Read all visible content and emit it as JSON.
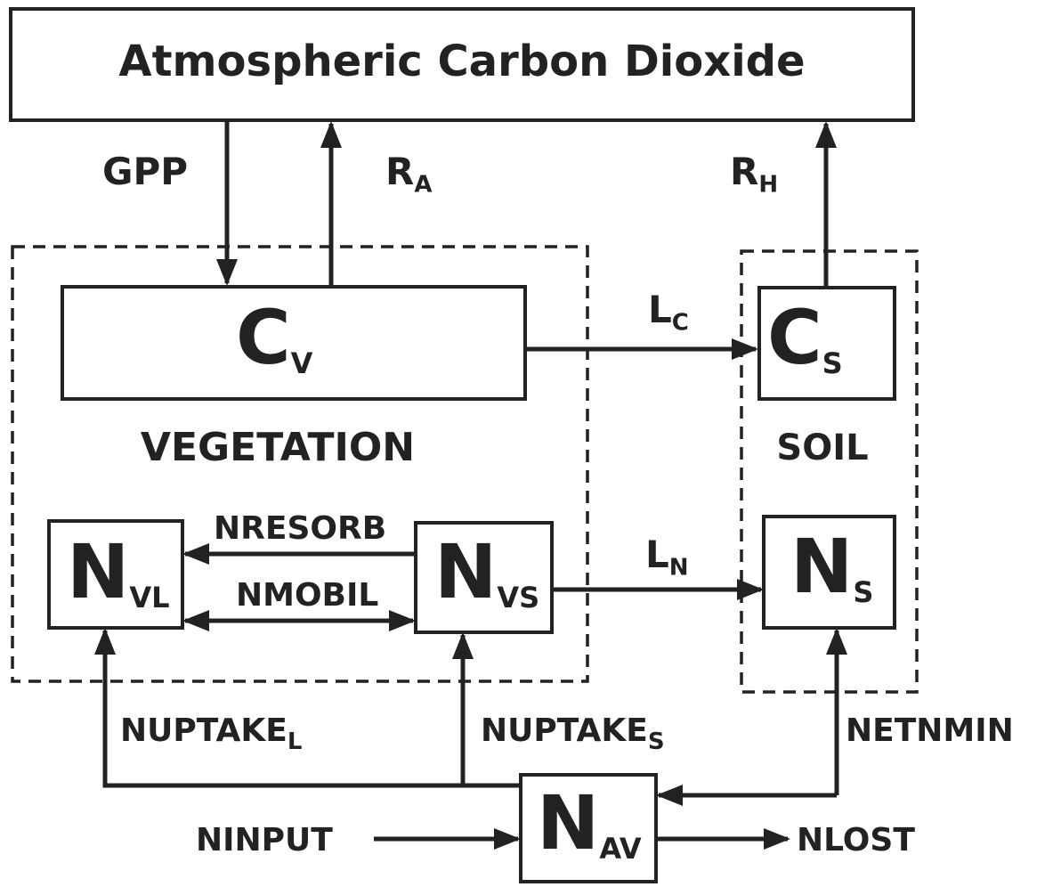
{
  "header": {
    "title": "Atmospheric Carbon Dioxide"
  },
  "groups": [
    {
      "label": "VEGETATION"
    },
    {
      "label": "SOIL"
    }
  ],
  "nodes": [
    {
      "main": "C",
      "sub": "V"
    },
    {
      "main": "C",
      "sub": "S"
    },
    {
      "main": "N",
      "sub": "VL"
    },
    {
      "main": "N",
      "sub": "VS"
    },
    {
      "main": "N",
      "sub": "S"
    },
    {
      "main": "N",
      "sub": "AV"
    }
  ],
  "fluxes": [
    {
      "label": "GPP"
    },
    {
      "label": "R",
      "sub": "A"
    },
    {
      "label": "R",
      "sub": "H"
    },
    {
      "label": "L",
      "sub": "C"
    },
    {
      "label": "L",
      "sub": "N"
    },
    {
      "label": "NRESORB"
    },
    {
      "label": "NMOBIL"
    },
    {
      "label": "NUPTAKE",
      "sub": "L"
    },
    {
      "label": "NUPTAKE",
      "sub": "S"
    },
    {
      "label": "NETNMIN"
    },
    {
      "label": "NINPUT"
    },
    {
      "label": "NLOST"
    }
  ]
}
